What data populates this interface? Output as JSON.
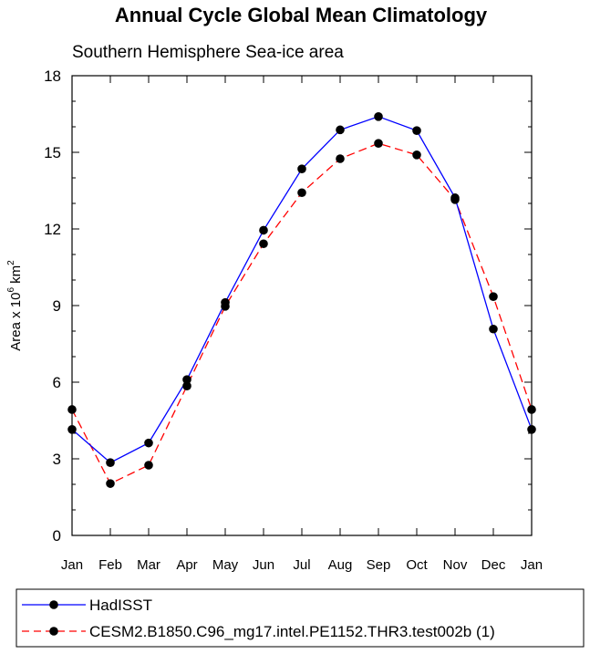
{
  "chart_data": {
    "type": "line",
    "title": "Annual Cycle Global Mean Climatology",
    "subtitle": "Southern Hemisphere Sea-ice area",
    "ylabel": "Area x 10",
    "ylabel_exp1": "6",
    "ylabel_mid": " km",
    "ylabel_exp2": "2",
    "ylim": [
      0,
      18
    ],
    "yticks": [
      "0",
      "3",
      "6",
      "9",
      "12",
      "15",
      "18"
    ],
    "categories": [
      "Jan",
      "Feb",
      "Mar",
      "Apr",
      "May",
      "Jun",
      "Jul",
      "Aug",
      "Sep",
      "Oct",
      "Nov",
      "Dec",
      "Jan"
    ],
    "series": [
      {
        "name": "HadISST",
        "color": "#0000ff",
        "dash": "solid",
        "values": [
          4.15,
          2.85,
          3.62,
          6.1,
          9.12,
          11.95,
          14.35,
          15.88,
          16.4,
          15.85,
          13.22,
          8.08,
          4.15
        ]
      },
      {
        "name": "CESM2.B1850.C96_mg17.intel.PE1152.THR3.test002b (1)",
        "color": "#ff0000",
        "dash": "dashed",
        "values": [
          4.93,
          2.03,
          2.75,
          5.85,
          8.97,
          11.42,
          13.42,
          14.75,
          15.35,
          14.9,
          13.15,
          9.35,
          4.93
        ]
      }
    ]
  }
}
